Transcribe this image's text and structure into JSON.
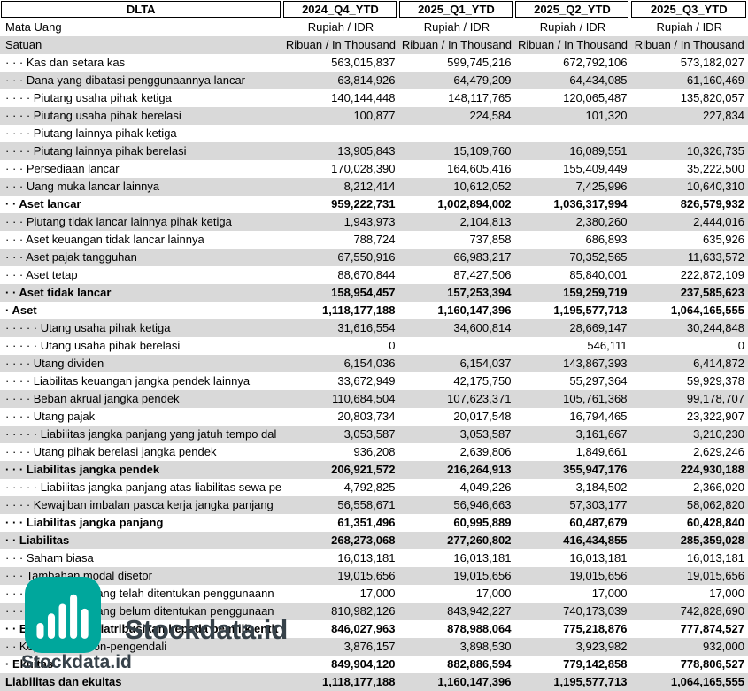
{
  "company": "DLTA",
  "columns": [
    "2024_Q4_YTD",
    "2025_Q1_YTD",
    "2025_Q2_YTD",
    "2025_Q3_YTD"
  ],
  "meta_rows": [
    {
      "label": "Mata Uang",
      "values": [
        "Rupiah / IDR",
        "Rupiah / IDR",
        "Rupiah / IDR",
        "Rupiah / IDR"
      ]
    },
    {
      "label": "Satuan",
      "values": [
        "Ribuan / In Thousand",
        "Ribuan / In Thousand",
        "Ribuan / In Thousand",
        "Ribuan / In Thousand"
      ]
    }
  ],
  "rows": [
    {
      "label": "· · · Kas dan setara kas",
      "values": [
        "563,015,837",
        "599,745,216",
        "672,792,106",
        "573,182,027"
      ],
      "bold": false
    },
    {
      "label": "· · · Dana yang dibatasi penggunaannya lancar",
      "values": [
        "63,814,926",
        "64,479,209",
        "64,434,085",
        "61,160,469"
      ],
      "bold": false
    },
    {
      "label": "· · · · Piutang usaha pihak ketiga",
      "values": [
        "140,144,448",
        "148,117,765",
        "120,065,487",
        "135,820,057"
      ],
      "bold": false
    },
    {
      "label": "· · · · Piutang usaha pihak berelasi",
      "values": [
        "100,877",
        "224,584",
        "101,320",
        "227,834"
      ],
      "bold": false
    },
    {
      "label": "· · · · Piutang lainnya pihak ketiga",
      "values": [
        "",
        "",
        "",
        ""
      ],
      "bold": false
    },
    {
      "label": "· · · · Piutang lainnya pihak berelasi",
      "values": [
        "13,905,843",
        "15,109,760",
        "16,089,551",
        "10,326,735"
      ],
      "bold": false
    },
    {
      "label": "· · · Persediaan lancar",
      "values": [
        "170,028,390",
        "164,605,416",
        "155,409,449",
        "35,222,500"
      ],
      "bold": false
    },
    {
      "label": "· · · Uang muka lancar lainnya",
      "values": [
        "8,212,414",
        "10,612,052",
        "7,425,996",
        "10,640,310"
      ],
      "bold": false
    },
    {
      "label": "· · Aset lancar",
      "values": [
        "959,222,731",
        "1,002,894,002",
        "1,036,317,994",
        "826,579,932"
      ],
      "bold": true
    },
    {
      "label": "· · · Piutang tidak lancar lainnya pihak ketiga",
      "values": [
        "1,943,973",
        "2,104,813",
        "2,380,260",
        "2,444,016"
      ],
      "bold": false
    },
    {
      "label": "· · · Aset keuangan tidak lancar lainnya",
      "values": [
        "788,724",
        "737,858",
        "686,893",
        "635,926"
      ],
      "bold": false
    },
    {
      "label": "· · · Aset pajak tangguhan",
      "values": [
        "67,550,916",
        "66,983,217",
        "70,352,565",
        "11,633,572"
      ],
      "bold": false
    },
    {
      "label": "· · · Aset tetap",
      "values": [
        "88,670,844",
        "87,427,506",
        "85,840,001",
        "222,872,109"
      ],
      "bold": false
    },
    {
      "label": "· · Aset tidak lancar",
      "values": [
        "158,954,457",
        "157,253,394",
        "159,259,719",
        "237,585,623"
      ],
      "bold": true
    },
    {
      "label": "· Aset",
      "values": [
        "1,118,177,188",
        "1,160,147,396",
        "1,195,577,713",
        "1,064,165,555"
      ],
      "bold": true
    },
    {
      "label": "· · · · · Utang usaha pihak ketiga",
      "values": [
        "31,616,554",
        "34,600,814",
        "28,669,147",
        "30,244,848"
      ],
      "bold": false
    },
    {
      "label": "· · · · · Utang usaha pihak berelasi",
      "values": [
        "0",
        "",
        "546,111",
        "0"
      ],
      "bold": false
    },
    {
      "label": "· · · · Utang dividen",
      "values": [
        "6,154,036",
        "6,154,037",
        "143,867,393",
        "6,414,872"
      ],
      "bold": false
    },
    {
      "label": "· · · · Liabilitas keuangan jangka pendek lainnya",
      "values": [
        "33,672,949",
        "42,175,750",
        "55,297,364",
        "59,929,378"
      ],
      "bold": false
    },
    {
      "label": "· · · · Beban akrual jangka pendek",
      "values": [
        "110,684,504",
        "107,623,371",
        "105,761,368",
        "99,178,707"
      ],
      "bold": false
    },
    {
      "label": "· · · · Utang pajak",
      "values": [
        "20,803,734",
        "20,017,548",
        "16,794,465",
        "23,322,907"
      ],
      "bold": false
    },
    {
      "label": "· · · · · Liabilitas jangka panjang yang jatuh tempo dal",
      "values": [
        "3,053,587",
        "3,053,587",
        "3,161,667",
        "3,210,230"
      ],
      "bold": false
    },
    {
      "label": "· · · · Utang pihak berelasi jangka pendek",
      "values": [
        "936,208",
        "2,639,806",
        "1,849,661",
        "2,629,246"
      ],
      "bold": false
    },
    {
      "label": "· · · Liabilitas jangka pendek",
      "values": [
        "206,921,572",
        "216,264,913",
        "355,947,176",
        "224,930,188"
      ],
      "bold": true
    },
    {
      "label": "· · · · · Liabilitas jangka panjang atas liabilitas sewa pe",
      "values": [
        "4,792,825",
        "4,049,226",
        "3,184,502",
        "2,366,020"
      ],
      "bold": false
    },
    {
      "label": "· · · · Kewajiban imbalan pasca kerja jangka panjang",
      "values": [
        "56,558,671",
        "56,946,663",
        "57,303,177",
        "58,062,820"
      ],
      "bold": false
    },
    {
      "label": "· · · Liabilitas jangka panjang",
      "values": [
        "61,351,496",
        "60,995,889",
        "60,487,679",
        "60,428,840"
      ],
      "bold": true
    },
    {
      "label": "· · Liabilitas",
      "values": [
        "268,273,068",
        "277,260,802",
        "416,434,855",
        "285,359,028"
      ],
      "bold": true
    },
    {
      "label": "· · · Saham biasa",
      "values": [
        "16,013,181",
        "16,013,181",
        "16,013,181",
        "16,013,181"
      ],
      "bold": false
    },
    {
      "label": "· · · Tambahan modal disetor",
      "values": [
        "19,015,656",
        "19,015,656",
        "19,015,656",
        "19,015,656"
      ],
      "bold": false
    },
    {
      "label": "· · · · Saldo laba yang telah ditentukan penggunaann",
      "values": [
        "17,000",
        "17,000",
        "17,000",
        "17,000"
      ],
      "bold": false
    },
    {
      "label": "· · · · Saldo laba yang belum ditentukan penggunaan",
      "values": [
        "810,982,126",
        "843,942,227",
        "740,173,039",
        "742,828,690"
      ],
      "bold": false
    },
    {
      "label": "· · Ekuitas yang diatribusikan kepada pemilik entit",
      "values": [
        "846,027,963",
        "878,988,064",
        "775,218,876",
        "777,874,527"
      ],
      "bold": true
    },
    {
      "label": "· · Kepentingan non-pengendali",
      "values": [
        "3,876,157",
        "3,898,530",
        "3,923,982",
        "932,000"
      ],
      "bold": false
    },
    {
      "label": "· Ekuitas",
      "values": [
        "849,904,120",
        "882,886,594",
        "779,142,858",
        "778,806,527"
      ],
      "bold": true
    },
    {
      "label": "Liabilitas dan ekuitas",
      "values": [
        "1,118,177,188",
        "1,160,147,396",
        "1,195,577,713",
        "1,064,165,555"
      ],
      "bold": true
    }
  ],
  "watermark": {
    "brand": "Stockdata.id",
    "icon_color": "#00a79c",
    "text_color": "#37424a"
  },
  "colors": {
    "row_base": "#ffffff",
    "row_alt": "#d9d9d9",
    "header_border": "#000000"
  }
}
